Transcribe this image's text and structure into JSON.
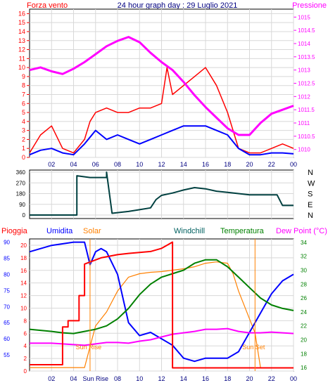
{
  "header": {
    "left_label": "Forza vento",
    "title": "24 hour graph day : 29 Luglio 2021",
    "right_label": "Pressione"
  },
  "colors": {
    "wind": "#ff0000",
    "wind_avg": "#0000ff",
    "pressure": "#ff00ff",
    "direction": "#004040",
    "rain": "#ff0000",
    "humidity": "#0000ff",
    "solar": "#ff8000",
    "windchill": "#006060",
    "temperature": "#008000",
    "dewpoint": "#ff00ff",
    "axis_left": "#ff0000",
    "axis_right": "#ff00ff"
  },
  "chart_data": [
    {
      "type": "line",
      "title": "24 hour graph day : 29 Luglio 2021",
      "xticks": [
        "02",
        "04",
        "06",
        "08",
        "10",
        "12",
        "14",
        "16",
        "18",
        "20",
        "22",
        "00"
      ],
      "left_axis": {
        "label": "Forza vento",
        "range": [
          0,
          16.5
        ],
        "ticks": [
          "0",
          "1",
          "2",
          "3",
          "4",
          "5",
          "6",
          "7",
          "8",
          "9",
          "10",
          "11",
          "12",
          "13",
          "14",
          "15",
          "16"
        ]
      },
      "right_axis": {
        "label": "Pressione",
        "range": [
          1009.7,
          1015.3
        ],
        "ticks": [
          "1010",
          "1010.5",
          "1011",
          "1011.5",
          "1012",
          "1012.5",
          "1013",
          "1013.5",
          "1014",
          "1014.5",
          "1015"
        ]
      },
      "series": [
        {
          "name": "Forza vento",
          "axis": "left",
          "x": [
            0,
            1,
            2,
            3,
            4,
            5,
            5.5,
            6,
            7,
            8,
            9,
            10,
            11,
            12,
            12.5,
            13,
            14,
            15,
            16,
            17,
            18,
            19,
            20,
            21,
            22,
            23,
            24
          ],
          "values": [
            0.5,
            2.5,
            3.5,
            1,
            0.5,
            2,
            4,
            5,
            5.5,
            5,
            5,
            5.5,
            5.5,
            6,
            10,
            7,
            8,
            9,
            10,
            8,
            5,
            1,
            0.5,
            0.5,
            1,
            1.5,
            1
          ]
        },
        {
          "name": "",
          "axis": "left",
          "x": [
            0,
            1,
            2,
            3,
            4,
            5,
            6,
            7,
            8,
            9,
            10,
            11,
            12,
            13,
            14,
            15,
            16,
            17,
            18,
            19,
            20,
            21,
            22,
            23,
            24
          ],
          "values": [
            0.3,
            0.8,
            1,
            0.5,
            0.3,
            1.5,
            3,
            2,
            2.5,
            2,
            1.5,
            2,
            2.5,
            3,
            3.5,
            3.5,
            3.5,
            3,
            2.5,
            1,
            0.3,
            0.3,
            0.5,
            0.5,
            0.4
          ]
        },
        {
          "name": "Pressione",
          "axis": "right",
          "x": [
            0,
            1,
            2,
            3,
            4,
            5,
            6,
            7,
            8,
            9,
            10,
            11,
            12,
            13,
            14,
            15,
            16,
            17,
            18,
            19,
            20,
            21,
            22,
            23,
            24
          ],
          "values": [
            1013.0,
            1013.1,
            1012.95,
            1012.85,
            1013.05,
            1013.3,
            1013.6,
            1013.9,
            1014.1,
            1014.25,
            1014.05,
            1013.65,
            1013.3,
            1013.0,
            1012.55,
            1012.05,
            1011.6,
            1011.2,
            1010.8,
            1010.55,
            1010.55,
            1011.0,
            1011.35,
            1011.5,
            1011.65
          ]
        }
      ]
    },
    {
      "type": "line",
      "left_axis": {
        "range": [
          0,
          360
        ],
        "ticks": [
          "0",
          "90",
          "180",
          "270",
          "360"
        ]
      },
      "right_axis": {
        "ticks": [
          "N",
          "W",
          "S",
          "E",
          "N"
        ]
      },
      "xticks": [
        "02",
        "04",
        "06",
        "08",
        "10",
        "12",
        "14",
        "16",
        "18",
        "20",
        "22",
        "00"
      ],
      "series": [
        {
          "name": "",
          "x": [
            0,
            4.3,
            4.3,
            5.5,
            7,
            7,
            7.5,
            8,
            9,
            10,
            11,
            11.5,
            12,
            13,
            14,
            15,
            16,
            17,
            18,
            19,
            20,
            21,
            22,
            22.5,
            23,
            24
          ],
          "values": [
            0,
            0,
            330,
            315,
            315,
            360,
            15,
            20,
            30,
            45,
            60,
            130,
            165,
            185,
            210,
            230,
            220,
            200,
            190,
            180,
            170,
            170,
            170,
            170,
            80,
            80
          ]
        }
      ]
    },
    {
      "type": "line",
      "legend": [
        "Pioggia",
        "Umidita",
        "Solar",
        "Windchill",
        "Temperatura",
        "Dew Point (°C)"
      ],
      "xticks": [
        "02",
        "04",
        "Sun Rise",
        "08",
        "10",
        "12",
        "14",
        "16",
        "18",
        "20",
        "22",
        "00"
      ],
      "left_axis_rain": {
        "range": [
          0,
          21
        ],
        "ticks": [
          "0",
          "2",
          "4",
          "6",
          "8",
          "10",
          "12",
          "14",
          "16",
          "18",
          "20"
        ]
      },
      "left_axis_humidity": {
        "range": [
          50,
          91
        ],
        "ticks": [
          "55",
          "60",
          "65",
          "70",
          "75",
          "80",
          "85",
          "90"
        ]
      },
      "right_axis": {
        "range": [
          15.5,
          34.5
        ],
        "ticks": [
          "16",
          "18",
          "20",
          "22",
          "24",
          "26",
          "28",
          "30",
          "32",
          "34"
        ]
      },
      "annotations": [
        "Sun Rise",
        "Sun Set"
      ],
      "series": [
        {
          "name": "Pioggia",
          "axis": "rain",
          "x": [
            0,
            3,
            3,
            3.5,
            3.5,
            4.5,
            4.5,
            5,
            5,
            6.5,
            8,
            8.5,
            9,
            11,
            12,
            12.5,
            13,
            13,
            24
          ],
          "values": [
            1,
            1,
            7,
            7,
            8,
            8,
            12,
            12,
            17,
            18,
            18.5,
            18.6,
            18.7,
            19,
            19.5,
            20,
            20.5,
            0.5,
            0.5
          ]
        },
        {
          "name": "Umidita",
          "axis": "humidity",
          "x": [
            0,
            2,
            4,
            5,
            5.5,
            6,
            6.5,
            7,
            8,
            9,
            10,
            11,
            12,
            13,
            14,
            15,
            16,
            17,
            18,
            19,
            20,
            21,
            22,
            23,
            24
          ],
          "values": [
            87,
            89,
            90,
            90,
            83,
            87,
            88,
            87,
            80,
            65,
            61,
            62,
            60,
            58,
            54,
            53,
            54,
            54,
            54,
            56,
            62,
            68,
            74,
            78,
            80
          ]
        },
        {
          "name": "Solar",
          "axis": "right",
          "x": [
            0,
            4,
            5,
            5.5,
            6,
            7,
            8,
            9,
            10,
            11,
            12,
            13,
            14,
            15,
            16,
            17,
            18,
            18.5,
            19,
            20,
            20.5,
            21,
            22,
            24
          ],
          "values": [
            16,
            16,
            16,
            19,
            22,
            24,
            27,
            29,
            29.5,
            29.7,
            29.8,
            30,
            30.2,
            30.5,
            31,
            31.2,
            31,
            29.5,
            27,
            23,
            21,
            16,
            16,
            16
          ]
        },
        {
          "name": "Windchill",
          "axis": "right",
          "x": [
            0,
            2,
            3,
            4,
            5,
            6,
            7,
            8,
            9,
            10,
            11,
            12,
            13,
            14,
            15,
            16,
            17,
            18,
            19,
            20,
            21,
            22,
            23,
            24
          ],
          "values": [
            21.5,
            21.2,
            21,
            20.9,
            21.2,
            21.5,
            22,
            23,
            24.5,
            26.5,
            28,
            29,
            29.5,
            30,
            31,
            31.5,
            31.5,
            30.5,
            29,
            27.5,
            26,
            25,
            24.5,
            24.2
          ]
        },
        {
          "name": "Temperatura",
          "axis": "right",
          "x": [
            0,
            2,
            3,
            4,
            5,
            6,
            7,
            8,
            9,
            10,
            11,
            12,
            13,
            14,
            15,
            16,
            17,
            18,
            19,
            20,
            21,
            22,
            23,
            24
          ],
          "values": [
            21.5,
            21.2,
            21,
            20.9,
            21.2,
            21.5,
            22,
            23,
            24.5,
            26.5,
            28,
            29,
            29.5,
            30,
            31,
            31.5,
            31.5,
            30.5,
            29,
            27.5,
            26,
            25,
            24.5,
            24.2
          ]
        },
        {
          "name": "Dew Point (°C)",
          "axis": "right",
          "x": [
            0,
            2,
            4,
            5,
            6,
            7,
            8,
            9,
            10,
            11,
            12,
            13,
            14,
            15,
            16,
            17,
            18,
            19,
            20,
            21,
            22,
            23,
            24
          ],
          "values": [
            19.5,
            19.5,
            19.3,
            19.2,
            19.4,
            19.6,
            19.6,
            19.5,
            19.8,
            20,
            20.4,
            20.8,
            21,
            21.2,
            21.5,
            21.5,
            21.6,
            21.2,
            21,
            21,
            21.1,
            21,
            20.9
          ]
        }
      ]
    }
  ]
}
